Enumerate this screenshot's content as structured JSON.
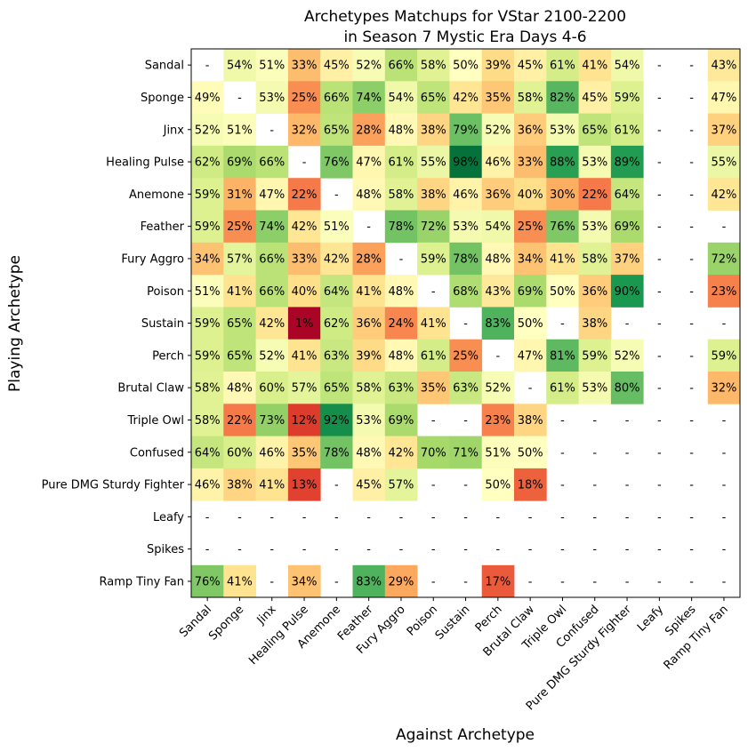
{
  "chart_data": {
    "type": "heatmap",
    "title": "Archetypes Matchups for VStar 2100-2200",
    "subtitle": "in Season 7 Mystic Era Days 4-6",
    "xlabel": "Against Archetype",
    "ylabel": "Playing Archetype",
    "colormap": "RdYlGn",
    "value_range": [
      0,
      100
    ],
    "rows": [
      "Sandal",
      "Sponge",
      "Jinx",
      "Healing Pulse",
      "Anemone",
      "Feather",
      "Fury Aggro",
      "Poison",
      "Sustain",
      "Perch",
      "Brutal Claw",
      "Triple Owl",
      "Confused",
      "Pure DMG Sturdy Fighter",
      "Leafy",
      "Spikes",
      "Ramp Tiny Fan"
    ],
    "columns": [
      "Sandal",
      "Sponge",
      "Jinx",
      "Healing Pulse",
      "Anemone",
      "Feather",
      "Fury Aggro",
      "Poison",
      "Sustain",
      "Perch",
      "Brutal Claw",
      "Triple Owl",
      "Confused",
      "Pure DMG Sturdy Fighter",
      "Leafy",
      "Spikes",
      "Ramp Tiny Fan"
    ],
    "values": [
      [
        null,
        54,
        51,
        33,
        45,
        52,
        66,
        58,
        50,
        39,
        45,
        61,
        41,
        54,
        null,
        null,
        43
      ],
      [
        49,
        null,
        53,
        25,
        66,
        74,
        54,
        65,
        42,
        35,
        58,
        82,
        45,
        59,
        null,
        null,
        47
      ],
      [
        52,
        51,
        null,
        32,
        65,
        28,
        48,
        38,
        79,
        52,
        36,
        53,
        65,
        61,
        null,
        null,
        37
      ],
      [
        62,
        69,
        66,
        null,
        76,
        47,
        61,
        55,
        98,
        46,
        33,
        88,
        53,
        89,
        null,
        null,
        55
      ],
      [
        59,
        31,
        47,
        22,
        null,
        48,
        58,
        38,
        46,
        36,
        40,
        30,
        22,
        64,
        null,
        null,
        42
      ],
      [
        59,
        25,
        74,
        42,
        51,
        null,
        78,
        72,
        53,
        54,
        25,
        76,
        53,
        69,
        null,
        null,
        null
      ],
      [
        34,
        57,
        66,
        33,
        42,
        28,
        null,
        59,
        78,
        48,
        34,
        41,
        58,
        37,
        null,
        null,
        72
      ],
      [
        51,
        41,
        66,
        40,
        64,
        41,
        48,
        null,
        68,
        43,
        69,
        50,
        36,
        90,
        null,
        null,
        23
      ],
      [
        59,
        65,
        42,
        1,
        62,
        36,
        24,
        41,
        null,
        83,
        50,
        null,
        38,
        null,
        null,
        null,
        null
      ],
      [
        59,
        65,
        52,
        41,
        63,
        39,
        48,
        61,
        25,
        null,
        47,
        81,
        59,
        52,
        null,
        null,
        59
      ],
      [
        58,
        48,
        60,
        57,
        65,
        58,
        63,
        35,
        63,
        52,
        null,
        61,
        53,
        80,
        null,
        null,
        32
      ],
      [
        58,
        22,
        73,
        12,
        92,
        53,
        69,
        null,
        null,
        23,
        38,
        null,
        null,
        null,
        null,
        null,
        null
      ],
      [
        64,
        60,
        46,
        35,
        78,
        48,
        42,
        70,
        71,
        51,
        50,
        null,
        null,
        null,
        null,
        null,
        null
      ],
      [
        46,
        38,
        41,
        13,
        null,
        45,
        57,
        null,
        null,
        50,
        18,
        null,
        null,
        null,
        null,
        null,
        null
      ],
      [
        null,
        null,
        null,
        null,
        null,
        null,
        null,
        null,
        null,
        null,
        null,
        null,
        null,
        null,
        null,
        null,
        null
      ],
      [
        null,
        null,
        null,
        null,
        null,
        null,
        null,
        null,
        null,
        null,
        null,
        null,
        null,
        null,
        null,
        null,
        null
      ],
      [
        76,
        41,
        null,
        34,
        null,
        83,
        29,
        null,
        null,
        17,
        null,
        null,
        null,
        null,
        null,
        null,
        null
      ]
    ],
    "missing_label": "-",
    "value_suffix": "%"
  }
}
